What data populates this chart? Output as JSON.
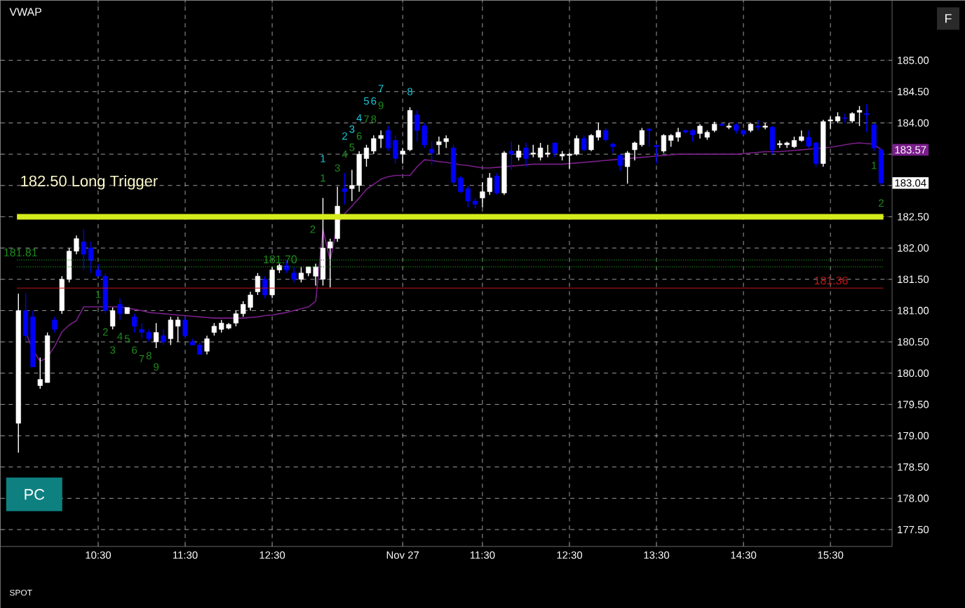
{
  "chart_data": {
    "type": "candlestick",
    "title": "VWAP",
    "categories": [
      null,
      null,
      null,
      null,
      null,
      null,
      null,
      null,
      null,
      null,
      null,
      "10:30",
      null,
      null,
      null,
      null,
      null,
      null,
      null,
      null,
      null,
      null,
      null,
      "11:30",
      null,
      null,
      null,
      null,
      null,
      null,
      null,
      null,
      null,
      null,
      null,
      "12:30",
      null,
      null,
      null,
      null,
      null,
      null,
      null,
      null,
      null,
      null,
      null,
      null,
      null,
      null,
      null,
      null,
      null,
      "Nov 27",
      null,
      null,
      null,
      null,
      null,
      null,
      null,
      null,
      null,
      null,
      "11:30",
      null,
      null,
      null,
      null,
      null,
      null,
      null,
      null,
      null,
      null,
      null,
      "12:30",
      null,
      null,
      null,
      null,
      null,
      null,
      null,
      null,
      null,
      null,
      null,
      "13:30",
      null,
      null,
      null,
      null,
      null,
      null,
      null,
      null,
      null,
      null,
      null,
      "14:30",
      null,
      null,
      null,
      null,
      null,
      null,
      null,
      null,
      null,
      null,
      null,
      "15:30",
      null,
      null,
      null,
      null,
      null,
      null,
      null
    ],
    "ohlc": [
      [
        179.2,
        181.27,
        178.73,
        181.0
      ],
      [
        181.0,
        181.28,
        180.5,
        180.6
      ],
      [
        180.9,
        181.0,
        180.1,
        180.1
      ],
      [
        179.8,
        180.25,
        179.75,
        179.9
      ],
      [
        179.85,
        180.65,
        179.85,
        180.6
      ],
      [
        180.85,
        180.9,
        180.65,
        180.7
      ],
      [
        181.0,
        181.55,
        180.95,
        181.5
      ],
      [
        181.5,
        182.0,
        181.45,
        181.95
      ],
      [
        181.95,
        182.2,
        181.9,
        182.15
      ],
      [
        182.1,
        182.3,
        181.65,
        181.9
      ],
      [
        182.0,
        182.1,
        181.6,
        181.8
      ],
      [
        181.65,
        181.75,
        181.55,
        181.55
      ],
      [
        181.55,
        181.6,
        180.95,
        181.0
      ],
      [
        180.75,
        181.05,
        180.7,
        181.0
      ],
      [
        181.1,
        181.2,
        180.85,
        180.95
      ],
      [
        180.95,
        181.05,
        180.95,
        181.05
      ],
      [
        180.9,
        180.95,
        180.65,
        180.75
      ],
      [
        180.7,
        180.8,
        180.55,
        180.65
      ],
      [
        180.65,
        180.7,
        180.5,
        180.55
      ],
      [
        180.5,
        180.8,
        180.4,
        180.65
      ],
      [
        180.6,
        180.7,
        180.45,
        180.5
      ],
      [
        180.55,
        180.9,
        180.45,
        180.85
      ],
      [
        180.75,
        180.9,
        180.5,
        180.85
      ],
      [
        180.85,
        180.9,
        180.55,
        180.6
      ],
      [
        180.5,
        180.55,
        180.45,
        180.45
      ],
      [
        180.45,
        180.5,
        180.3,
        180.3
      ],
      [
        180.35,
        180.6,
        180.3,
        180.55
      ],
      [
        180.65,
        180.8,
        180.6,
        180.75
      ],
      [
        180.7,
        180.85,
        180.65,
        180.8
      ],
      [
        180.72,
        180.8,
        180.7,
        180.78
      ],
      [
        180.8,
        181.0,
        180.75,
        180.95
      ],
      [
        180.95,
        181.15,
        180.9,
        181.1
      ],
      [
        181.05,
        181.3,
        181.0,
        181.25
      ],
      [
        181.3,
        181.6,
        181.25,
        181.55
      ],
      [
        181.5,
        181.55,
        181.2,
        181.25
      ],
      [
        181.25,
        181.7,
        181.2,
        181.65
      ],
      [
        181.65,
        181.75,
        181.6,
        181.72
      ],
      [
        181.72,
        181.8,
        181.6,
        181.65
      ],
      [
        181.6,
        181.7,
        181.45,
        181.5
      ],
      [
        181.5,
        181.7,
        181.45,
        181.6
      ],
      [
        181.6,
        181.7,
        181.55,
        181.7
      ],
      [
        181.55,
        181.75,
        181.4,
        181.7
      ],
      [
        181.5,
        182.8,
        181.4,
        182.0
      ],
      [
        182.0,
        182.15,
        181.37,
        182.1
      ],
      [
        182.15,
        182.98,
        182.1,
        182.67
      ],
      [
        182.95,
        183.2,
        182.7,
        182.9
      ],
      [
        182.95,
        183.25,
        182.75,
        183.0
      ],
      [
        183.0,
        183.55,
        182.9,
        183.5
      ],
      [
        183.43,
        183.65,
        183.3,
        183.6
      ],
      [
        183.55,
        183.8,
        183.5,
        183.75
      ],
      [
        183.75,
        183.88,
        183.6,
        183.8
      ],
      [
        183.88,
        183.95,
        183.55,
        183.6
      ],
      [
        183.72,
        183.8,
        183.35,
        183.43
      ],
      [
        183.5,
        183.6,
        183.35,
        183.55
      ],
      [
        183.57,
        184.25,
        183.55,
        184.2
      ],
      [
        184.13,
        184.2,
        183.7,
        183.88
      ],
      [
        183.95,
        184.0,
        183.6,
        183.65
      ],
      [
        183.58,
        183.7,
        183.33,
        183.52
      ],
      [
        183.65,
        183.78,
        183.5,
        183.7
      ],
      [
        183.7,
        183.8,
        183.6,
        183.75
      ],
      [
        183.6,
        183.65,
        183.0,
        183.05
      ],
      [
        183.12,
        183.15,
        182.88,
        182.9
      ],
      [
        182.95,
        183.0,
        182.65,
        182.75
      ],
      [
        182.75,
        182.8,
        182.63,
        182.7
      ],
      [
        182.8,
        183.05,
        182.65,
        182.9
      ],
      [
        182.9,
        183.2,
        182.85,
        183.12
      ],
      [
        183.15,
        183.2,
        182.85,
        182.88
      ],
      [
        182.88,
        183.55,
        182.85,
        183.52
      ],
      [
        183.55,
        183.7,
        183.25,
        183.5
      ],
      [
        183.45,
        183.65,
        183.4,
        183.55
      ],
      [
        183.6,
        183.68,
        183.3,
        183.43
      ],
      [
        183.5,
        183.65,
        183.45,
        183.52
      ],
      [
        183.45,
        183.68,
        183.4,
        183.6
      ],
      [
        183.5,
        183.65,
        183.45,
        183.52
      ],
      [
        183.68,
        183.68,
        183.45,
        183.52
      ],
      [
        183.47,
        183.55,
        183.4,
        183.5
      ],
      [
        183.48,
        183.52,
        183.27,
        183.5
      ],
      [
        183.5,
        183.8,
        183.48,
        183.75
      ],
      [
        183.75,
        183.8,
        183.55,
        183.57
      ],
      [
        183.57,
        183.82,
        183.55,
        183.8
      ],
      [
        183.77,
        184.0,
        183.72,
        183.88
      ],
      [
        183.88,
        183.92,
        183.7,
        183.73
      ],
      [
        183.66,
        183.68,
        183.52,
        183.62
      ],
      [
        183.48,
        183.5,
        183.23,
        183.32
      ],
      [
        183.3,
        183.55,
        183.03,
        183.52
      ],
      [
        183.57,
        183.7,
        183.4,
        183.68
      ],
      [
        183.65,
        183.92,
        183.62,
        183.88
      ],
      [
        183.9,
        183.92,
        183.62,
        183.88
      ],
      [
        183.64,
        183.65,
        183.35,
        183.62
      ],
      [
        183.55,
        183.82,
        183.52,
        183.8
      ],
      [
        183.72,
        183.82,
        183.62,
        183.8
      ],
      [
        183.77,
        183.92,
        183.7,
        183.85
      ],
      [
        183.88,
        183.9,
        183.82,
        183.85
      ],
      [
        183.88,
        183.9,
        183.7,
        183.81
      ],
      [
        183.83,
        183.98,
        183.75,
        183.95
      ],
      [
        183.77,
        183.88,
        183.73,
        183.85
      ],
      [
        183.88,
        184.02,
        183.85,
        183.98
      ],
      [
        183.98,
        184.0,
        183.95,
        183.96
      ],
      [
        183.93,
        184.0,
        183.9,
        183.95
      ],
      [
        183.97,
        184.0,
        183.83,
        183.88
      ],
      [
        183.88,
        183.9,
        183.8,
        183.82
      ],
      [
        183.88,
        184.0,
        183.85,
        183.98
      ],
      [
        183.95,
        184.05,
        183.88,
        183.93
      ],
      [
        183.93,
        184.0,
        183.9,
        183.95
      ],
      [
        183.93,
        183.95,
        183.5,
        183.57
      ],
      [
        183.65,
        183.72,
        183.6,
        183.67
      ],
      [
        183.65,
        183.7,
        183.6,
        183.68
      ],
      [
        183.62,
        183.78,
        183.6,
        183.72
      ],
      [
        183.72,
        183.88,
        183.7,
        183.78
      ],
      [
        183.77,
        183.88,
        183.6,
        183.63
      ],
      [
        183.68,
        183.7,
        183.3,
        183.35
      ],
      [
        183.35,
        184.05,
        183.3,
        184.02
      ],
      [
        184.03,
        184.1,
        183.9,
        184.05
      ],
      [
        184.03,
        184.17,
        184.0,
        184.1
      ],
      [
        184.08,
        184.15,
        184.0,
        184.07
      ],
      [
        184.03,
        184.17,
        184.0,
        184.15
      ],
      [
        184.17,
        184.27,
        183.95,
        184.2
      ],
      [
        184.15,
        184.3,
        183.85,
        184.13
      ],
      [
        183.97,
        184.0,
        183.55,
        183.6
      ],
      [
        183.57,
        183.6,
        183.0,
        183.04
      ]
    ],
    "colors": [
      "#ffffff",
      "#0000ff",
      "#0000ff",
      "#ffffff",
      "#ffffff",
      "#0000ff",
      "#ffffff",
      "#ffffff",
      "#ffffff",
      "#0000ff",
      "#0000ff",
      "#0000ff",
      "#0000ff",
      "#ffffff",
      "#0000ff",
      "#ffffff",
      "#0000ff",
      "#0000ff",
      "#0000ff",
      "#ffffff",
      "#0000ff",
      "#ffffff",
      "#ffffff",
      "#0000ff",
      "#0000ff",
      "#0000ff",
      "#ffffff",
      "#ffffff",
      "#ffffff",
      "#ffffff",
      "#ffffff",
      "#ffffff",
      "#ffffff",
      "#ffffff",
      "#0000ff",
      "#ffffff",
      "#ffffff",
      "#0000ff",
      "#0000ff",
      "#ffffff",
      "#ffffff",
      "#ffffff",
      "#ffffff",
      "#ffffff",
      "#ffffff",
      "#0000ff",
      "#ffffff",
      "#ffffff",
      "#ffffff",
      "#ffffff",
      "#ffffff",
      "#0000ff",
      "#0000ff",
      "#ffffff",
      "#ffffff",
      "#0000ff",
      "#0000ff",
      "#0000ff",
      "#ffffff",
      "#ffffff",
      "#0000ff",
      "#0000ff",
      "#0000ff",
      "#0000ff",
      "#ffffff",
      "#ffffff",
      "#0000ff",
      "#ffffff",
      "#0000ff",
      "#ffffff",
      "#0000ff",
      "#ffffff",
      "#ffffff",
      "#ffffff",
      "#0000ff",
      "#ffffff",
      "#ffffff",
      "#ffffff",
      "#0000ff",
      "#ffffff",
      "#ffffff",
      "#0000ff",
      "#0000ff",
      "#0000ff",
      "#ffffff",
      "#ffffff",
      "#ffffff",
      "#0000ff",
      "#0000ff",
      "#ffffff",
      "#ffffff",
      "#ffffff",
      "#0000ff",
      "#0000ff",
      "#ffffff",
      "#ffffff",
      "#ffffff",
      "#0000ff",
      "#ffffff",
      "#0000ff",
      "#0000ff",
      "#ffffff",
      "#0000ff",
      "#ffffff",
      "#0000ff",
      "#ffffff",
      "#ffffff",
      "#ffffff",
      "#ffffff",
      "#0000ff",
      "#0000ff",
      "#ffffff",
      "#ffffff",
      "#ffffff",
      "#0000ff",
      "#ffffff",
      "#ffffff",
      "#0000ff",
      "#0000ff",
      "#0000ff"
    ],
    "series": [
      {
        "type": "line",
        "color": "#7a1f8a",
        "values": [
          null,
          180.66,
          180.37,
          180.19,
          180.25,
          180.43,
          180.66,
          180.77,
          180.84,
          181.06,
          181.06,
          181.06,
          181.06,
          181.06,
          181.06,
          181.04,
          181.02,
          181.0,
          180.97,
          180.96,
          180.95,
          180.94,
          180.93,
          180.92,
          180.91,
          180.9,
          180.89,
          180.88,
          180.88,
          180.88,
          180.88,
          180.88,
          180.89,
          180.9,
          180.92,
          180.93,
          180.95,
          180.97,
          181.0,
          181.03,
          181.06,
          181.15,
          182.3,
          181.8,
          182.38,
          182.55,
          182.67,
          182.8,
          182.94,
          183.02,
          183.1,
          183.14,
          183.16,
          183.16,
          183.16,
          183.3,
          183.41,
          183.4,
          183.38,
          183.37,
          183.35,
          183.33,
          183.32,
          183.3,
          183.28,
          183.28,
          183.29,
          183.3,
          183.31,
          183.32,
          183.33,
          183.34,
          183.34,
          183.34,
          183.34,
          183.34,
          183.35,
          183.36,
          183.37,
          183.38,
          183.39,
          183.4,
          183.41,
          183.42,
          183.43,
          183.44,
          183.45,
          183.46,
          183.47,
          183.48,
          183.49,
          183.5,
          183.5,
          183.5,
          183.5,
          183.5,
          183.5,
          183.5,
          183.5,
          183.5,
          183.51,
          183.52,
          183.53,
          183.54,
          183.54,
          183.54,
          183.55,
          183.56,
          183.57,
          183.58,
          183.59,
          183.6,
          183.61,
          183.63,
          183.65,
          183.67,
          183.68,
          183.67,
          183.66,
          183.57
        ]
      }
    ],
    "ylim": [
      177.23,
      185.96
    ],
    "yticks": [
      {
        "value": 177.5,
        "label": "177.50"
      },
      {
        "value": 178,
        "label": "178.00"
      },
      {
        "value": 178.5,
        "label": "178.50"
      },
      {
        "value": 179,
        "label": "179.00"
      },
      {
        "value": 179.5,
        "label": "179.50"
      },
      {
        "value": 180,
        "label": "180.00"
      },
      {
        "value": 180.5,
        "label": "180.50"
      },
      {
        "value": 181,
        "label": "181.00"
      },
      {
        "value": 181.5,
        "label": "181.50"
      },
      {
        "value": 182,
        "label": "182.00"
      },
      {
        "value": 182.5,
        "label": "182.50"
      },
      {
        "value": 183,
        "label": null
      },
      {
        "value": 183.5,
        "label": null
      },
      {
        "value": 184,
        "label": "184.00"
      },
      {
        "value": 184.5,
        "label": "184.50"
      },
      {
        "value": 185,
        "label": "185.00"
      }
    ],
    "grid": true,
    "ref_lines": [
      {
        "axis": "y",
        "value": 182.5,
        "label": "182.50 Long Trigger",
        "color": "#d4ec1c"
      },
      {
        "axis": "y",
        "value": 181.36,
        "label": "181.36",
        "color": "#c01818"
      },
      {
        "axis": "y",
        "value": 181.81,
        "label": "181.81",
        "color": "#1e8c1e",
        "line_style": "dotted"
      },
      {
        "axis": "y",
        "value": 181.7,
        "label": "181.70",
        "color": "#1e8c1e",
        "line_style": "dotted"
      }
    ],
    "annotations": [
      "PC",
      "SPOT",
      "F",
      {
        "text": "183.57",
        "y": 183.57
      },
      {
        "text": "183.04",
        "y": 183.04
      },
      "1",
      "2",
      "3",
      "4",
      "5",
      "6",
      "7",
      "8",
      "9",
      "1",
      "2",
      "3",
      "4",
      "5",
      "6",
      "7",
      "8",
      "1",
      "2",
      "3",
      "4",
      "5",
      "6",
      "7",
      "8",
      "9",
      "1",
      "2"
    ]
  }
}
